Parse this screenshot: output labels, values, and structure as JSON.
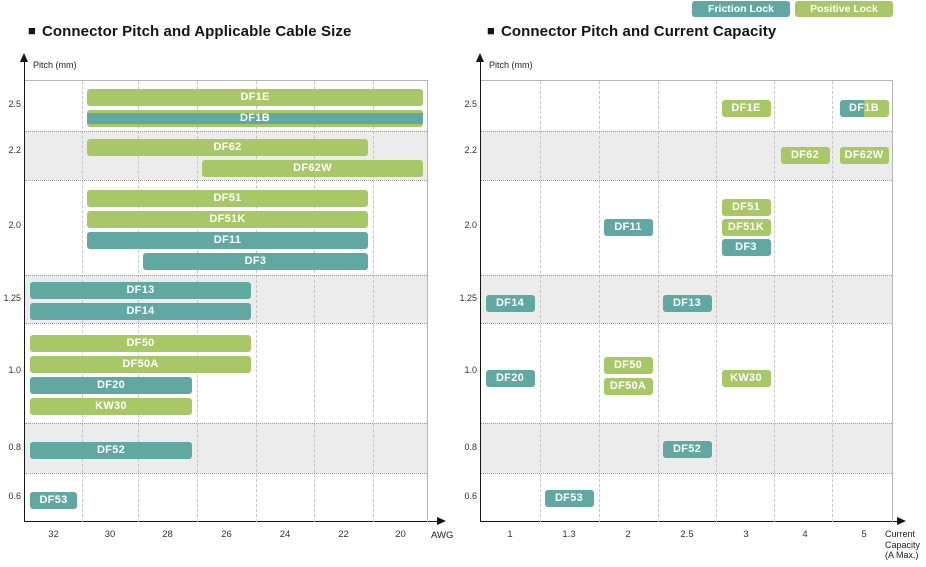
{
  "legend": {
    "friction_label": "Friction Lock",
    "positive_label": "Positive Lock"
  },
  "title_marker": "■",
  "colors": {
    "friction": "#60a8a1",
    "positive": "#a8c766",
    "row_shade": "#ececec"
  },
  "chart_data": [
    {
      "type": "bar",
      "title": "Connector Pitch and Applicable Cable Size",
      "ylabel": "Pitch (mm)",
      "xlabel": "AWG",
      "x_ticks": [
        "32",
        "30",
        "28",
        "26",
        "24",
        "22",
        "20"
      ],
      "y_ticks": [
        "2.5",
        "2.2",
        "2.0",
        "1.25",
        "1.0",
        "0.8",
        "0.6"
      ],
      "legend_position": "top-right",
      "rows": [
        {
          "pitch": "2.5",
          "shaded": false,
          "bars": [
            {
              "label": "DF1E",
              "lock": "positive",
              "awg_from": 30,
              "awg_to": 20
            },
            {
              "label": "DF1B",
              "lock": "both",
              "awg_from": 30,
              "awg_to": 20
            }
          ]
        },
        {
          "pitch": "2.2",
          "shaded": true,
          "bars": [
            {
              "label": "DF62",
              "lock": "positive",
              "awg_from": 30,
              "awg_to": 22
            },
            {
              "label": "DF62W",
              "lock": "positive",
              "awg_from": 26,
              "awg_to": 20
            }
          ]
        },
        {
          "pitch": "2.0",
          "shaded": false,
          "bars": [
            {
              "label": "DF51",
              "lock": "positive",
              "awg_from": 30,
              "awg_to": 22
            },
            {
              "label": "DF51K",
              "lock": "positive",
              "awg_from": 30,
              "awg_to": 22
            },
            {
              "label": "DF11",
              "lock": "friction",
              "awg_from": 30,
              "awg_to": 22
            },
            {
              "label": "DF3",
              "lock": "friction",
              "awg_from": 28,
              "awg_to": 22
            }
          ]
        },
        {
          "pitch": "1.25",
          "shaded": true,
          "bars": [
            {
              "label": "DF13",
              "lock": "friction",
              "awg_from": 32,
              "awg_to": 26
            },
            {
              "label": "DF14",
              "lock": "friction",
              "awg_from": 32,
              "awg_to": 26
            }
          ]
        },
        {
          "pitch": "1.0",
          "shaded": false,
          "bars": [
            {
              "label": "DF50",
              "lock": "positive",
              "awg_from": 32,
              "awg_to": 26
            },
            {
              "label": "DF50A",
              "lock": "positive",
              "awg_from": 32,
              "awg_to": 26
            },
            {
              "label": "DF20",
              "lock": "friction",
              "awg_from": 32,
              "awg_to": 28
            },
            {
              "label": "KW30",
              "lock": "positive",
              "awg_from": 32,
              "awg_to": 28
            }
          ]
        },
        {
          "pitch": "0.8",
          "shaded": true,
          "bars": [
            {
              "label": "DF52",
              "lock": "friction",
              "awg_from": 32,
              "awg_to": 28
            }
          ]
        },
        {
          "pitch": "0.6",
          "shaded": false,
          "bars": [
            {
              "label": "DF53",
              "lock": "friction",
              "awg_from": 32,
              "awg_to": 32
            }
          ]
        }
      ]
    },
    {
      "type": "scatter",
      "title": "Connector Pitch and Current Capacity",
      "ylabel": "Pitch (mm)",
      "xlabel": "Current Capacity (A Max.)",
      "xlabel_lines": [
        "Current",
        "Capacity",
        "(A Max.)"
      ],
      "x_ticks": [
        "1",
        "1.3",
        "2",
        "2.5",
        "3",
        "4",
        "5"
      ],
      "y_ticks": [
        "2.5",
        "2.2",
        "2.0",
        "1.25",
        "1.0",
        "0.8",
        "0.6"
      ],
      "rows": [
        {
          "pitch": "2.5",
          "shaded": false,
          "points": [
            {
              "label": "DF1E",
              "lock": "positive",
              "x": "3",
              "dy": 2
            },
            {
              "label": "DF1B",
              "lock": "both",
              "x": "5",
              "dy": 2
            }
          ]
        },
        {
          "pitch": "2.2",
          "shaded": true,
          "points": [
            {
              "label": "DF62",
              "lock": "positive",
              "x": "4",
              "dy": 0
            },
            {
              "label": "DF62W",
              "lock": "positive",
              "x": "5",
              "dy": 0
            }
          ]
        },
        {
          "pitch": "2.0",
          "shaded": false,
          "points": [
            {
              "label": "DF11",
              "lock": "friction",
              "x": "2",
              "dy": 0
            },
            {
              "label": "DF51",
              "lock": "positive",
              "x": "3",
              "dy": -20
            },
            {
              "label": "DF51K",
              "lock": "positive",
              "x": "3",
              "dy": 0
            },
            {
              "label": "DF3",
              "lock": "friction",
              "x": "3",
              "dy": 20
            }
          ]
        },
        {
          "pitch": "1.25",
          "shaded": true,
          "points": [
            {
              "label": "DF14",
              "lock": "friction",
              "x": "1",
              "dy": 4
            },
            {
              "label": "DF13",
              "lock": "friction",
              "x": "2.5",
              "dy": 4
            }
          ]
        },
        {
          "pitch": "1.0",
          "shaded": false,
          "points": [
            {
              "label": "DF20",
              "lock": "friction",
              "x": "1",
              "dy": 5
            },
            {
              "label": "DF50",
              "lock": "positive",
              "x": "2",
              "dy": -8
            },
            {
              "label": "DF50A",
              "lock": "positive",
              "x": "2",
              "dy": 13
            },
            {
              "label": "KW30",
              "lock": "positive",
              "x": "3",
              "dy": 5
            }
          ]
        },
        {
          "pitch": "0.8",
          "shaded": true,
          "points": [
            {
              "label": "DF52",
              "lock": "friction",
              "x": "2.5",
              "dy": 1
            }
          ]
        },
        {
          "pitch": "0.6",
          "shaded": false,
          "points": [
            {
              "label": "DF53",
              "lock": "friction",
              "x": "1.3",
              "dy": 0
            }
          ]
        }
      ]
    }
  ]
}
